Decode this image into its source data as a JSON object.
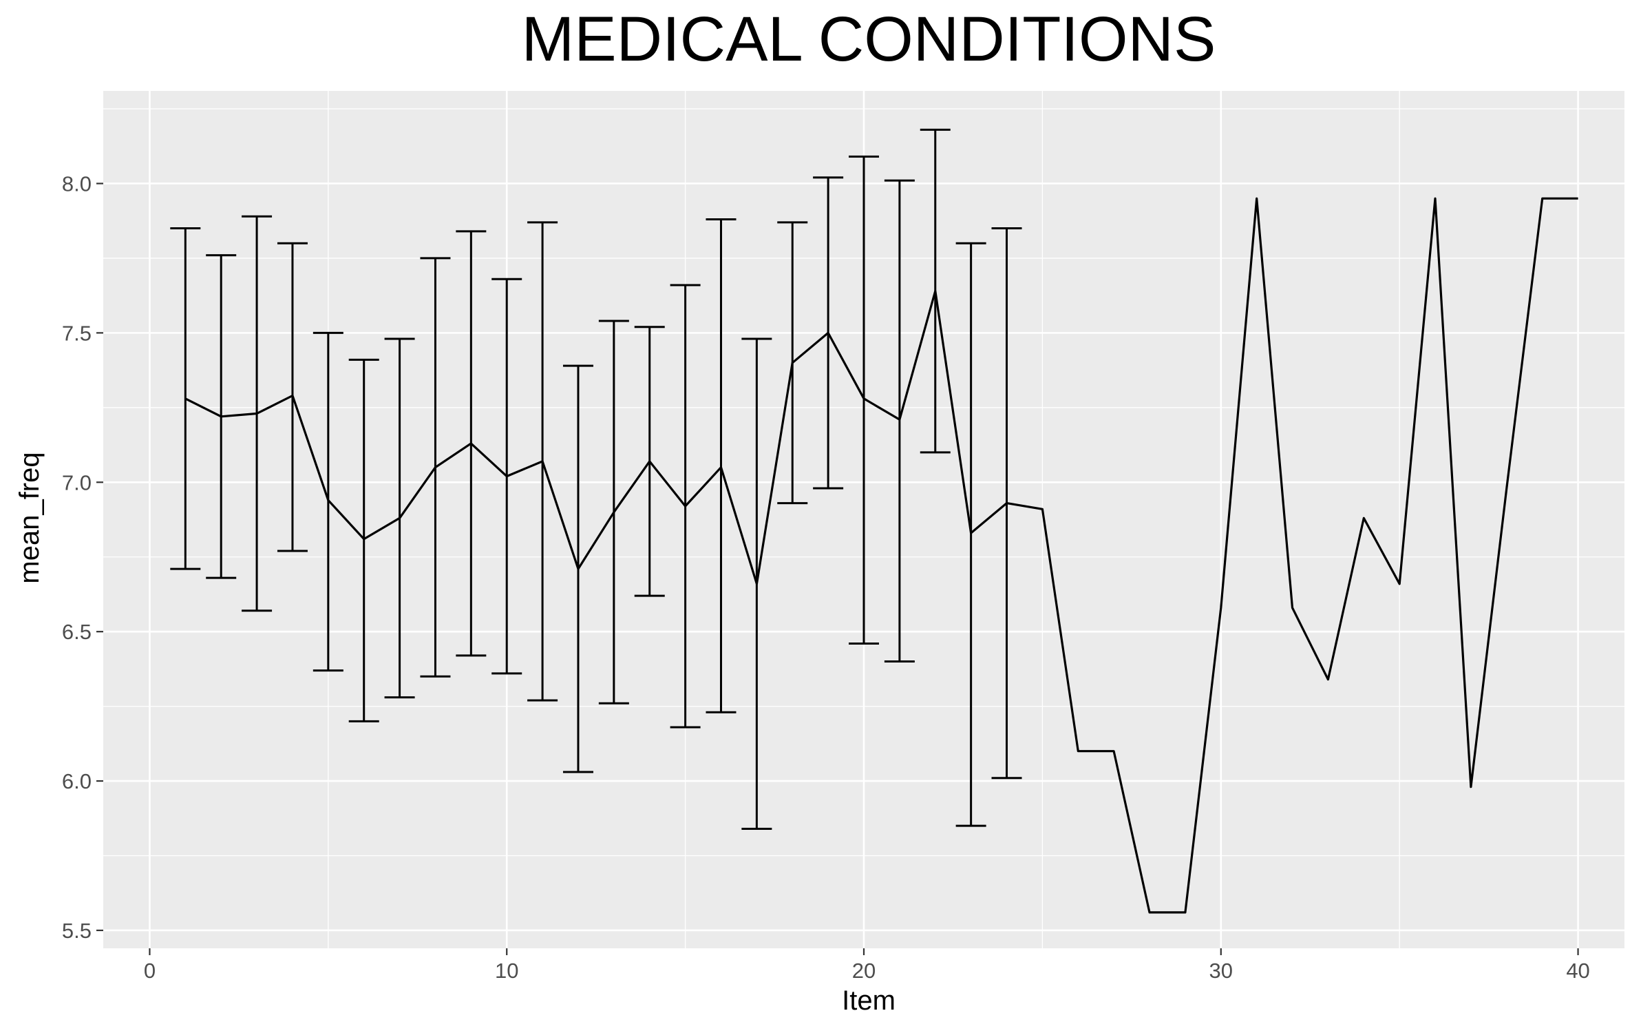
{
  "chart_data": {
    "type": "line",
    "title": "MEDICAL CONDITIONS",
    "xlabel": "Item",
    "ylabel": "mean_freq",
    "xlim": [
      -1.3,
      41.3
    ],
    "ylim": [
      5.44,
      8.31
    ],
    "x_ticks": [
      0,
      10,
      20,
      30,
      40
    ],
    "x_tick_labels": [
      "0",
      "10",
      "20",
      "30",
      "40"
    ],
    "y_ticks": [
      5.5,
      6.0,
      6.5,
      7.0,
      7.5,
      8.0
    ],
    "y_tick_labels": [
      "5.5",
      "6.0",
      "6.5",
      "7.0",
      "7.5",
      "8.0"
    ],
    "grid": true,
    "colors": {
      "panel_background": "#ebebeb",
      "grid": "#ffffff",
      "line": "#000000",
      "tick_text": "#4d4d4d"
    },
    "series": [
      {
        "x": [
          1,
          2,
          3,
          4,
          5,
          6,
          7,
          8,
          9,
          10,
          11,
          12,
          13,
          14,
          15,
          16,
          17,
          18,
          19,
          20,
          21,
          22,
          23,
          24,
          25,
          26,
          27,
          28,
          29,
          30,
          31,
          32,
          33,
          34,
          35,
          36,
          37,
          38,
          39,
          40
        ],
        "values": [
          7.28,
          7.22,
          7.23,
          7.29,
          6.94,
          6.81,
          6.88,
          7.05,
          7.13,
          7.02,
          7.07,
          6.71,
          6.9,
          7.07,
          6.92,
          7.05,
          6.66,
          7.4,
          7.5,
          7.28,
          7.21,
          7.64,
          6.83,
          6.93,
          6.91,
          6.1,
          6.1,
          5.56,
          5.56,
          6.58,
          7.95,
          6.58,
          6.34,
          6.88,
          6.66,
          7.95,
          5.98,
          6.98,
          7.95,
          7.95
        ],
        "error_bars": [
          {
            "x": 1,
            "lower": 6.71,
            "upper": 7.85
          },
          {
            "x": 2,
            "lower": 6.68,
            "upper": 7.76
          },
          {
            "x": 3,
            "lower": 6.57,
            "upper": 7.89
          },
          {
            "x": 4,
            "lower": 6.77,
            "upper": 7.8
          },
          {
            "x": 5,
            "lower": 6.37,
            "upper": 7.5
          },
          {
            "x": 6,
            "lower": 6.2,
            "upper": 7.41
          },
          {
            "x": 7,
            "lower": 6.28,
            "upper": 7.48
          },
          {
            "x": 8,
            "lower": 6.35,
            "upper": 7.75
          },
          {
            "x": 9,
            "lower": 6.42,
            "upper": 7.84
          },
          {
            "x": 10,
            "lower": 6.36,
            "upper": 7.68
          },
          {
            "x": 11,
            "lower": 6.27,
            "upper": 7.87
          },
          {
            "x": 12,
            "lower": 6.03,
            "upper": 7.39
          },
          {
            "x": 13,
            "lower": 6.26,
            "upper": 7.54
          },
          {
            "x": 14,
            "lower": 6.62,
            "upper": 7.52
          },
          {
            "x": 15,
            "lower": 6.18,
            "upper": 7.66
          },
          {
            "x": 16,
            "lower": 6.23,
            "upper": 7.88
          },
          {
            "x": 17,
            "lower": 5.84,
            "upper": 7.48
          },
          {
            "x": 18,
            "lower": 6.93,
            "upper": 7.87
          },
          {
            "x": 19,
            "lower": 6.98,
            "upper": 8.02
          },
          {
            "x": 20,
            "lower": 6.46,
            "upper": 8.09
          },
          {
            "x": 21,
            "lower": 6.4,
            "upper": 8.01
          },
          {
            "x": 22,
            "lower": 7.1,
            "upper": 8.18
          },
          {
            "x": 23,
            "lower": 5.85,
            "upper": 7.8
          },
          {
            "x": 24,
            "lower": 6.01,
            "upper": 7.85
          }
        ]
      }
    ]
  }
}
